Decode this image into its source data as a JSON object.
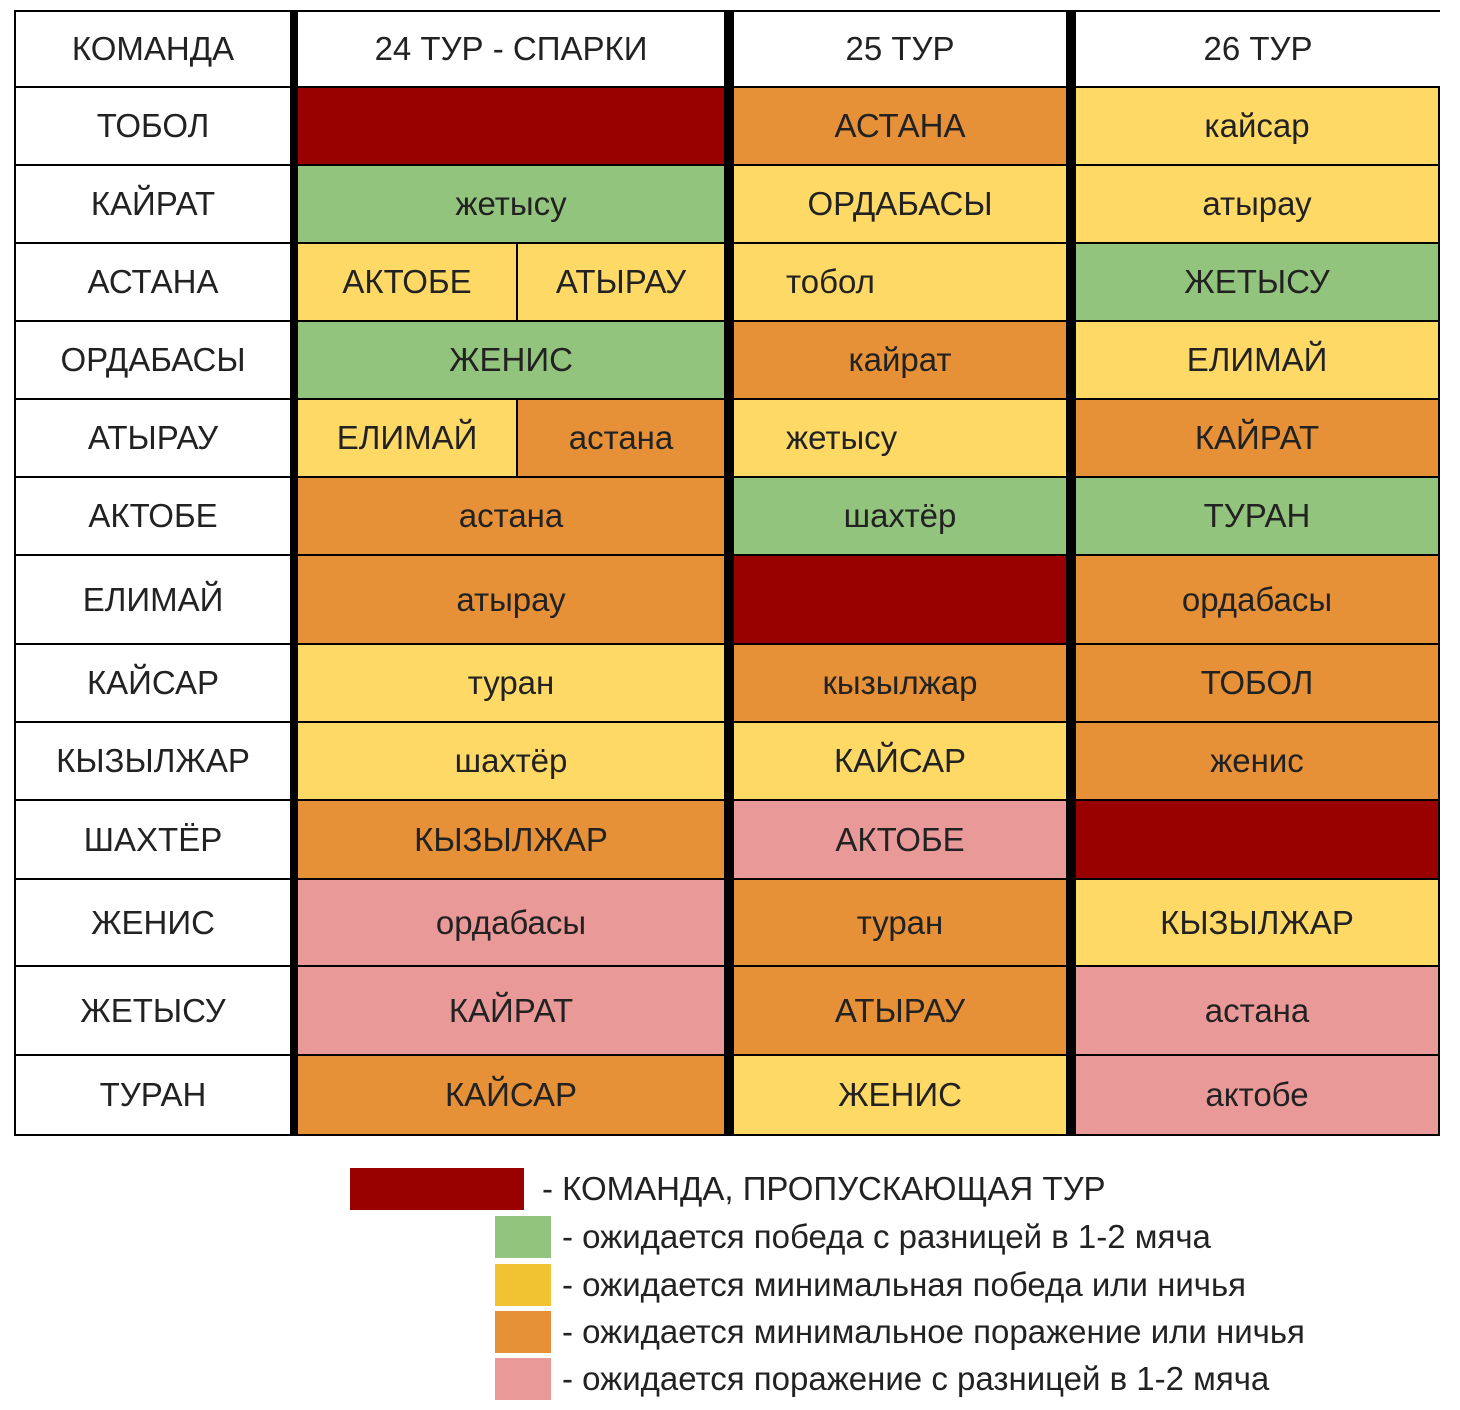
{
  "colors": {
    "bye": "#990000",
    "green": "#93c47d",
    "yellow": "#ffd966",
    "orange": "#e69138",
    "pink": "#ea9999",
    "white": "#ffffff",
    "text": "#222222"
  },
  "table": {
    "headers": [
      "КОМАНДА",
      "24 ТУР - СПАРКИ",
      "25 ТУР",
      "26 ТУР"
    ],
    "rows": [
      {
        "team": "ТОБОЛ",
        "r24": [
          {
            "text": "",
            "status": "bye"
          }
        ],
        "r25": {
          "text": "АСТАНА",
          "status": "orange"
        },
        "r26": {
          "text": "кайсар",
          "status": "yellow"
        }
      },
      {
        "team": "КАЙРАТ",
        "r24": [
          {
            "text": "жетысу",
            "status": "green"
          }
        ],
        "r25": {
          "text": "ОРДАБАСЫ",
          "status": "yellow"
        },
        "r26": {
          "text": "атырау",
          "status": "yellow"
        }
      },
      {
        "team": "АСТАНА",
        "r24": [
          {
            "text": "АКТОБЕ",
            "status": "yellow"
          },
          {
            "text": "АТЫРАУ",
            "status": "yellow"
          }
        ],
        "r25": {
          "text": "тобол",
          "status": "yellow"
        },
        "r26": {
          "text": "ЖЕТЫСУ",
          "status": "green"
        }
      },
      {
        "team": "ОРДАБАСЫ",
        "r24": [
          {
            "text": "ЖЕНИС",
            "status": "green"
          }
        ],
        "r25": {
          "text": "кайрат",
          "status": "orange"
        },
        "r26": {
          "text": "ЕЛИМАЙ",
          "status": "yellow"
        }
      },
      {
        "team": "АТЫРАУ",
        "r24": [
          {
            "text": "ЕЛИМАЙ",
            "status": "yellow"
          },
          {
            "text": "астана",
            "status": "orange"
          }
        ],
        "r25": {
          "text": "жетысу",
          "status": "yellow"
        },
        "r26": {
          "text": "КАЙРАТ",
          "status": "orange"
        }
      },
      {
        "team": "АКТОБЕ",
        "r24": [
          {
            "text": "астана",
            "status": "orange"
          }
        ],
        "r25": {
          "text": "шахтёр",
          "status": "green"
        },
        "r26": {
          "text": "ТУРАН",
          "status": "green"
        }
      },
      {
        "team": "ЕЛИМАЙ",
        "r24": [
          {
            "text": "атырау",
            "status": "orange"
          }
        ],
        "r25": {
          "text": "",
          "status": "bye"
        },
        "r26": {
          "text": "ордабасы",
          "status": "orange"
        }
      },
      {
        "team": "КАЙСАР",
        "r24": [
          {
            "text": "туран",
            "status": "yellow"
          }
        ],
        "r25": {
          "text": "кызылжар",
          "status": "orange"
        },
        "r26": {
          "text": "ТОБОЛ",
          "status": "orange"
        }
      },
      {
        "team": "КЫЗЫЛЖАР",
        "r24": [
          {
            "text": "шахтёр",
            "status": "yellow"
          }
        ],
        "r25": {
          "text": "КАЙСАР",
          "status": "yellow"
        },
        "r26": {
          "text": "женис",
          "status": "orange"
        }
      },
      {
        "team": "ШАХТЁР",
        "r24": [
          {
            "text": "КЫЗЫЛЖАР",
            "status": "orange"
          }
        ],
        "r25": {
          "text": "АКТОБЕ",
          "status": "pink"
        },
        "r26": {
          "text": "",
          "status": "bye"
        }
      },
      {
        "team": "ЖЕНИС",
        "r24": [
          {
            "text": "ордабасы",
            "status": "pink"
          }
        ],
        "r25": {
          "text": "туран",
          "status": "orange"
        },
        "r26": {
          "text": "КЫЗЫЛЖАР",
          "status": "yellow"
        }
      },
      {
        "team": "ЖЕТЫСУ",
        "r24": [
          {
            "text": "КАЙРАТ",
            "status": "pink"
          }
        ],
        "r25": {
          "text": "АТЫРАУ",
          "status": "orange"
        },
        "r26": {
          "text": "астана",
          "status": "pink"
        }
      },
      {
        "team": "ТУРАН",
        "r24": [
          {
            "text": "КАЙСАР",
            "status": "orange"
          }
        ],
        "r25": {
          "text": "ЖЕНИС",
          "status": "yellow"
        },
        "r26": {
          "text": "актобе",
          "status": "pink"
        }
      }
    ]
  },
  "legend": [
    {
      "status": "bye",
      "label": "- КОМАНДА, ПРОПУСКАЮЩАЯ ТУР"
    },
    {
      "status": "green",
      "label": "- ожидается победа с разницей в 1-2 мяча"
    },
    {
      "status": "yellow",
      "label": "- ожидается минимальная победа или ничья"
    },
    {
      "status": "orange",
      "label": "- ожидается минимальное поражение или ничья"
    },
    {
      "status": "pink",
      "label": "- ожидается поражение с разницей в 1-2 мяча"
    }
  ]
}
